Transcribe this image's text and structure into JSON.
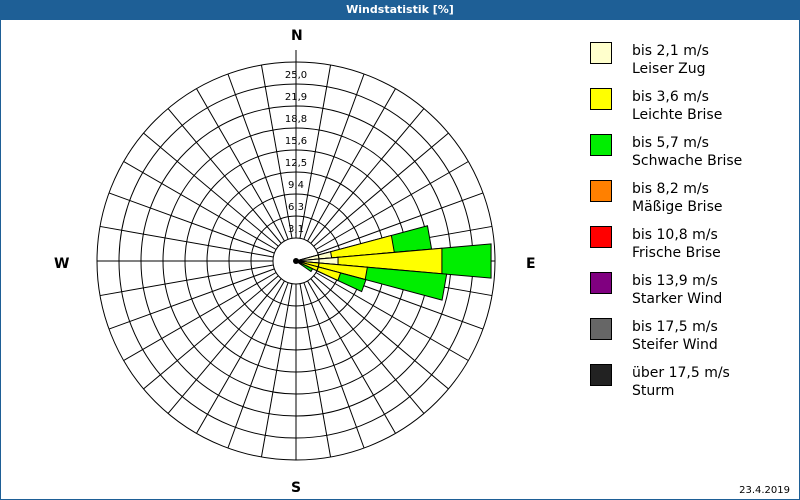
{
  "header": {
    "title": "Windstatistik [%]"
  },
  "footer": {
    "date": "23.4.2019"
  },
  "directions": {
    "n": "N",
    "e": "E",
    "s": "S",
    "w": "W"
  },
  "legend": [
    {
      "range": "bis 2,1 m/s",
      "name": "Leiser Zug",
      "color": "#ffffcc"
    },
    {
      "range": "bis 3,6 m/s",
      "name": "Leichte Brise",
      "color": "#ffff00"
    },
    {
      "range": "bis 5,7 m/s",
      "name": "Schwache Brise",
      "color": "#00ee00"
    },
    {
      "range": "bis 8,2 m/s",
      "name": "Mäßige Brise",
      "color": "#ff8000"
    },
    {
      "range": "bis 10,8 m/s",
      "name": "Frische Brise",
      "color": "#ff0000"
    },
    {
      "range": "bis 13,9 m/s",
      "name": "Starker Wind",
      "color": "#800080"
    },
    {
      "range": "bis 17,5 m/s",
      "name": "Steifer Wind",
      "color": "#666666"
    },
    {
      "range": "über 17,5 m/s",
      "name": "Sturm",
      "color": "#222222"
    }
  ],
  "chart_data": {
    "type": "polar-bar (wind rose)",
    "title": "Windstatistik [%]",
    "radial_axis": {
      "unit": "%",
      "ticks": [
        "3,1",
        "6,3",
        "9,4",
        "12,5",
        "15,6",
        "18,8",
        "21,9",
        "25,0"
      ],
      "max": 25.0
    },
    "sector_width_deg": 10,
    "speed_classes": [
      "bis 2,1 m/s",
      "bis 3,6 m/s",
      "bis 5,7 m/s",
      "bis 8,2 m/s",
      "bis 10,8 m/s",
      "bis 13,9 m/s",
      "bis 17,5 m/s",
      "über 17,5 m/s"
    ],
    "note": "cumulative percentages per direction, read from ring radii",
    "sectors": [
      {
        "direction_deg": 80,
        "cumulative": [
          4.5,
          12.4,
          17.1
        ]
      },
      {
        "direction_deg": 90,
        "cumulative": [
          5.3,
          18.4,
          24.6
        ]
      },
      {
        "direction_deg": 100,
        "cumulative": [
          1.0,
          9.0,
          19.0
        ]
      },
      {
        "direction_deg": 110,
        "cumulative": [
          0.5,
          5.8,
          9.1
        ]
      },
      {
        "direction_deg": 120,
        "cumulative": [
          0.3,
          0.8,
          2.3
        ]
      }
    ],
    "date": "23.4.2019"
  }
}
